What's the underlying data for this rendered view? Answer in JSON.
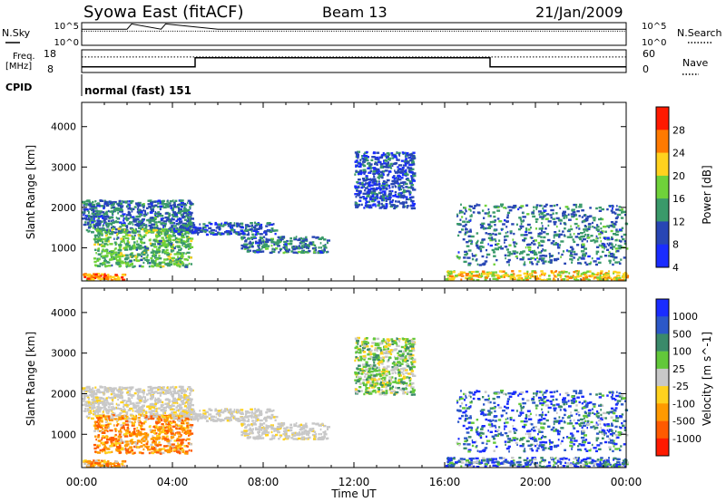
{
  "header": {
    "station": "Syowa East (fitACF)",
    "beam": "Beam 13",
    "date": "21/Jan/2009"
  },
  "summary": {
    "nsky_label": "N.Sky",
    "nsearch_label": "N.Search",
    "freq_label_1": "Freq.",
    "freq_label_2": "[MHz]",
    "nave_label": "Nave",
    "cpid_label": "CPID",
    "cpid_value": "normal (fast) 151",
    "noise_ticks": [
      "10^5",
      "10^0"
    ],
    "freq_ticks": [
      "18",
      "8"
    ],
    "nave_ticks": [
      "60",
      "0"
    ]
  },
  "chart_data": [
    {
      "type": "line",
      "title": "",
      "panel": "noise",
      "left_label": "N.Sky",
      "right_label": "N.Search",
      "yscale": "log",
      "y_ticks": [
        "10^5",
        "10^0"
      ],
      "x": [
        0,
        2,
        2.2,
        3.5,
        3.7,
        6,
        12,
        18,
        24
      ],
      "series": [
        {
          "name": "N.Sky",
          "values": [
            4000,
            4000,
            80000,
            4000,
            80000,
            4000,
            4000,
            4000,
            4000
          ]
        },
        {
          "name": "N.Search",
          "values": [
            3500,
            3500,
            3500,
            3500,
            3500,
            3500,
            3500,
            3500,
            3500
          ]
        }
      ]
    },
    {
      "type": "line",
      "title": "",
      "panel": "frequency / averages",
      "left_label": "Freq. [MHz]",
      "right_label": "Nave",
      "ylim_left": [
        8,
        18
      ],
      "ylim_right": [
        0,
        60
      ],
      "x": [
        0,
        5,
        5,
        18,
        18,
        24
      ],
      "series": [
        {
          "name": "Freq.",
          "axis": "left",
          "values": [
            10.5,
            10.5,
            14.5,
            14.5,
            10.5,
            10.5
          ]
        },
        {
          "name": "Nave",
          "axis": "right",
          "values": [
            41,
            41,
            41,
            41,
            41,
            41
          ]
        }
      ]
    },
    {
      "type": "heatmap",
      "title": "",
      "quantity": "Power",
      "xlabel": "Time UT",
      "ylabel": "Slant Range [km]",
      "colorbar_label": "Power [dB]",
      "x_ticks": [
        "00:00",
        "04:00",
        "08:00",
        "12:00",
        "16:00",
        "20:00",
        "00:00"
      ],
      "y_ticks": [
        1000,
        2000,
        3000,
        4000
      ],
      "xlim": [
        0,
        24
      ],
      "ylim": [
        180,
        4600
      ],
      "colorbar_ticks": [
        4,
        8,
        12,
        16,
        20,
        24,
        28
      ],
      "colorbar_colors": [
        "#1a2cff",
        "#2846b4",
        "#3a9a6a",
        "#6fd23a",
        "#ffd21e",
        "#ff7a00",
        "#ff1a00"
      ],
      "colorbar_range": [
        0,
        30
      ],
      "echo_regions": [
        {
          "t": [
            0.0,
            4.8
          ],
          "r": [
            1400,
            2200
          ],
          "level": 8
        },
        {
          "t": [
            0.5,
            4.8
          ],
          "r": [
            550,
            1500
          ],
          "level": 13
        },
        {
          "t": [
            0.0,
            1.8
          ],
          "r": [
            220,
            380
          ],
          "level": 22
        },
        {
          "t": [
            4.0,
            8.5
          ],
          "r": [
            1350,
            1650
          ],
          "level": 7
        },
        {
          "t": [
            7.0,
            10.8
          ],
          "r": [
            900,
            1300
          ],
          "level": 9
        },
        {
          "t": [
            12.0,
            14.6
          ],
          "r": [
            2000,
            3400
          ],
          "level": 6
        },
        {
          "t": [
            16.0,
            24.0
          ],
          "r": [
            220,
            450
          ],
          "level": 19
        },
        {
          "t": [
            16.5,
            24.0
          ],
          "r": [
            600,
            2100
          ],
          "level": 9
        }
      ]
    },
    {
      "type": "heatmap",
      "title": "",
      "quantity": "Velocity",
      "xlabel": "Time UT",
      "ylabel": "Slant Range [km]",
      "colorbar_label": "Velocity [m s^-1]",
      "x_ticks": [
        "00:00",
        "04:00",
        "08:00",
        "12:00",
        "16:00",
        "20:00",
        "00:00"
      ],
      "y_ticks": [
        1000,
        2000,
        3000,
        4000
      ],
      "xlim": [
        0,
        24
      ],
      "ylim": [
        180,
        4600
      ],
      "colorbar_ticks": [
        "1000",
        "500",
        "100",
        "25",
        "-25",
        "-100",
        "-500",
        "-1000"
      ],
      "colorbar_colors": [
        "#1a2cff",
        "#2c58c8",
        "#3a8a6a",
        "#62c83a",
        "#c8c8c8",
        "#ffd21e",
        "#ff9a00",
        "#ff5a00",
        "#ff1a00"
      ],
      "echo_regions": [
        {
          "t": [
            0.0,
            4.8
          ],
          "r": [
            1400,
            2200
          ],
          "level": "ground"
        },
        {
          "t": [
            0.5,
            4.8
          ],
          "r": [
            550,
            1500
          ],
          "level": "negative"
        },
        {
          "t": [
            0.0,
            1.8
          ],
          "r": [
            220,
            380
          ],
          "level": "negative"
        },
        {
          "t": [
            4.0,
            8.5
          ],
          "r": [
            1350,
            1650
          ],
          "level": "ground"
        },
        {
          "t": [
            7.0,
            10.8
          ],
          "r": [
            900,
            1300
          ],
          "level": "ground"
        },
        {
          "t": [
            12.0,
            14.6
          ],
          "r": [
            2000,
            3400
          ],
          "level": "mixed"
        },
        {
          "t": [
            16.0,
            24.0
          ],
          "r": [
            220,
            450
          ],
          "level": "positive"
        },
        {
          "t": [
            16.5,
            24.0
          ],
          "r": [
            600,
            2100
          ],
          "level": "positive"
        }
      ]
    }
  ]
}
